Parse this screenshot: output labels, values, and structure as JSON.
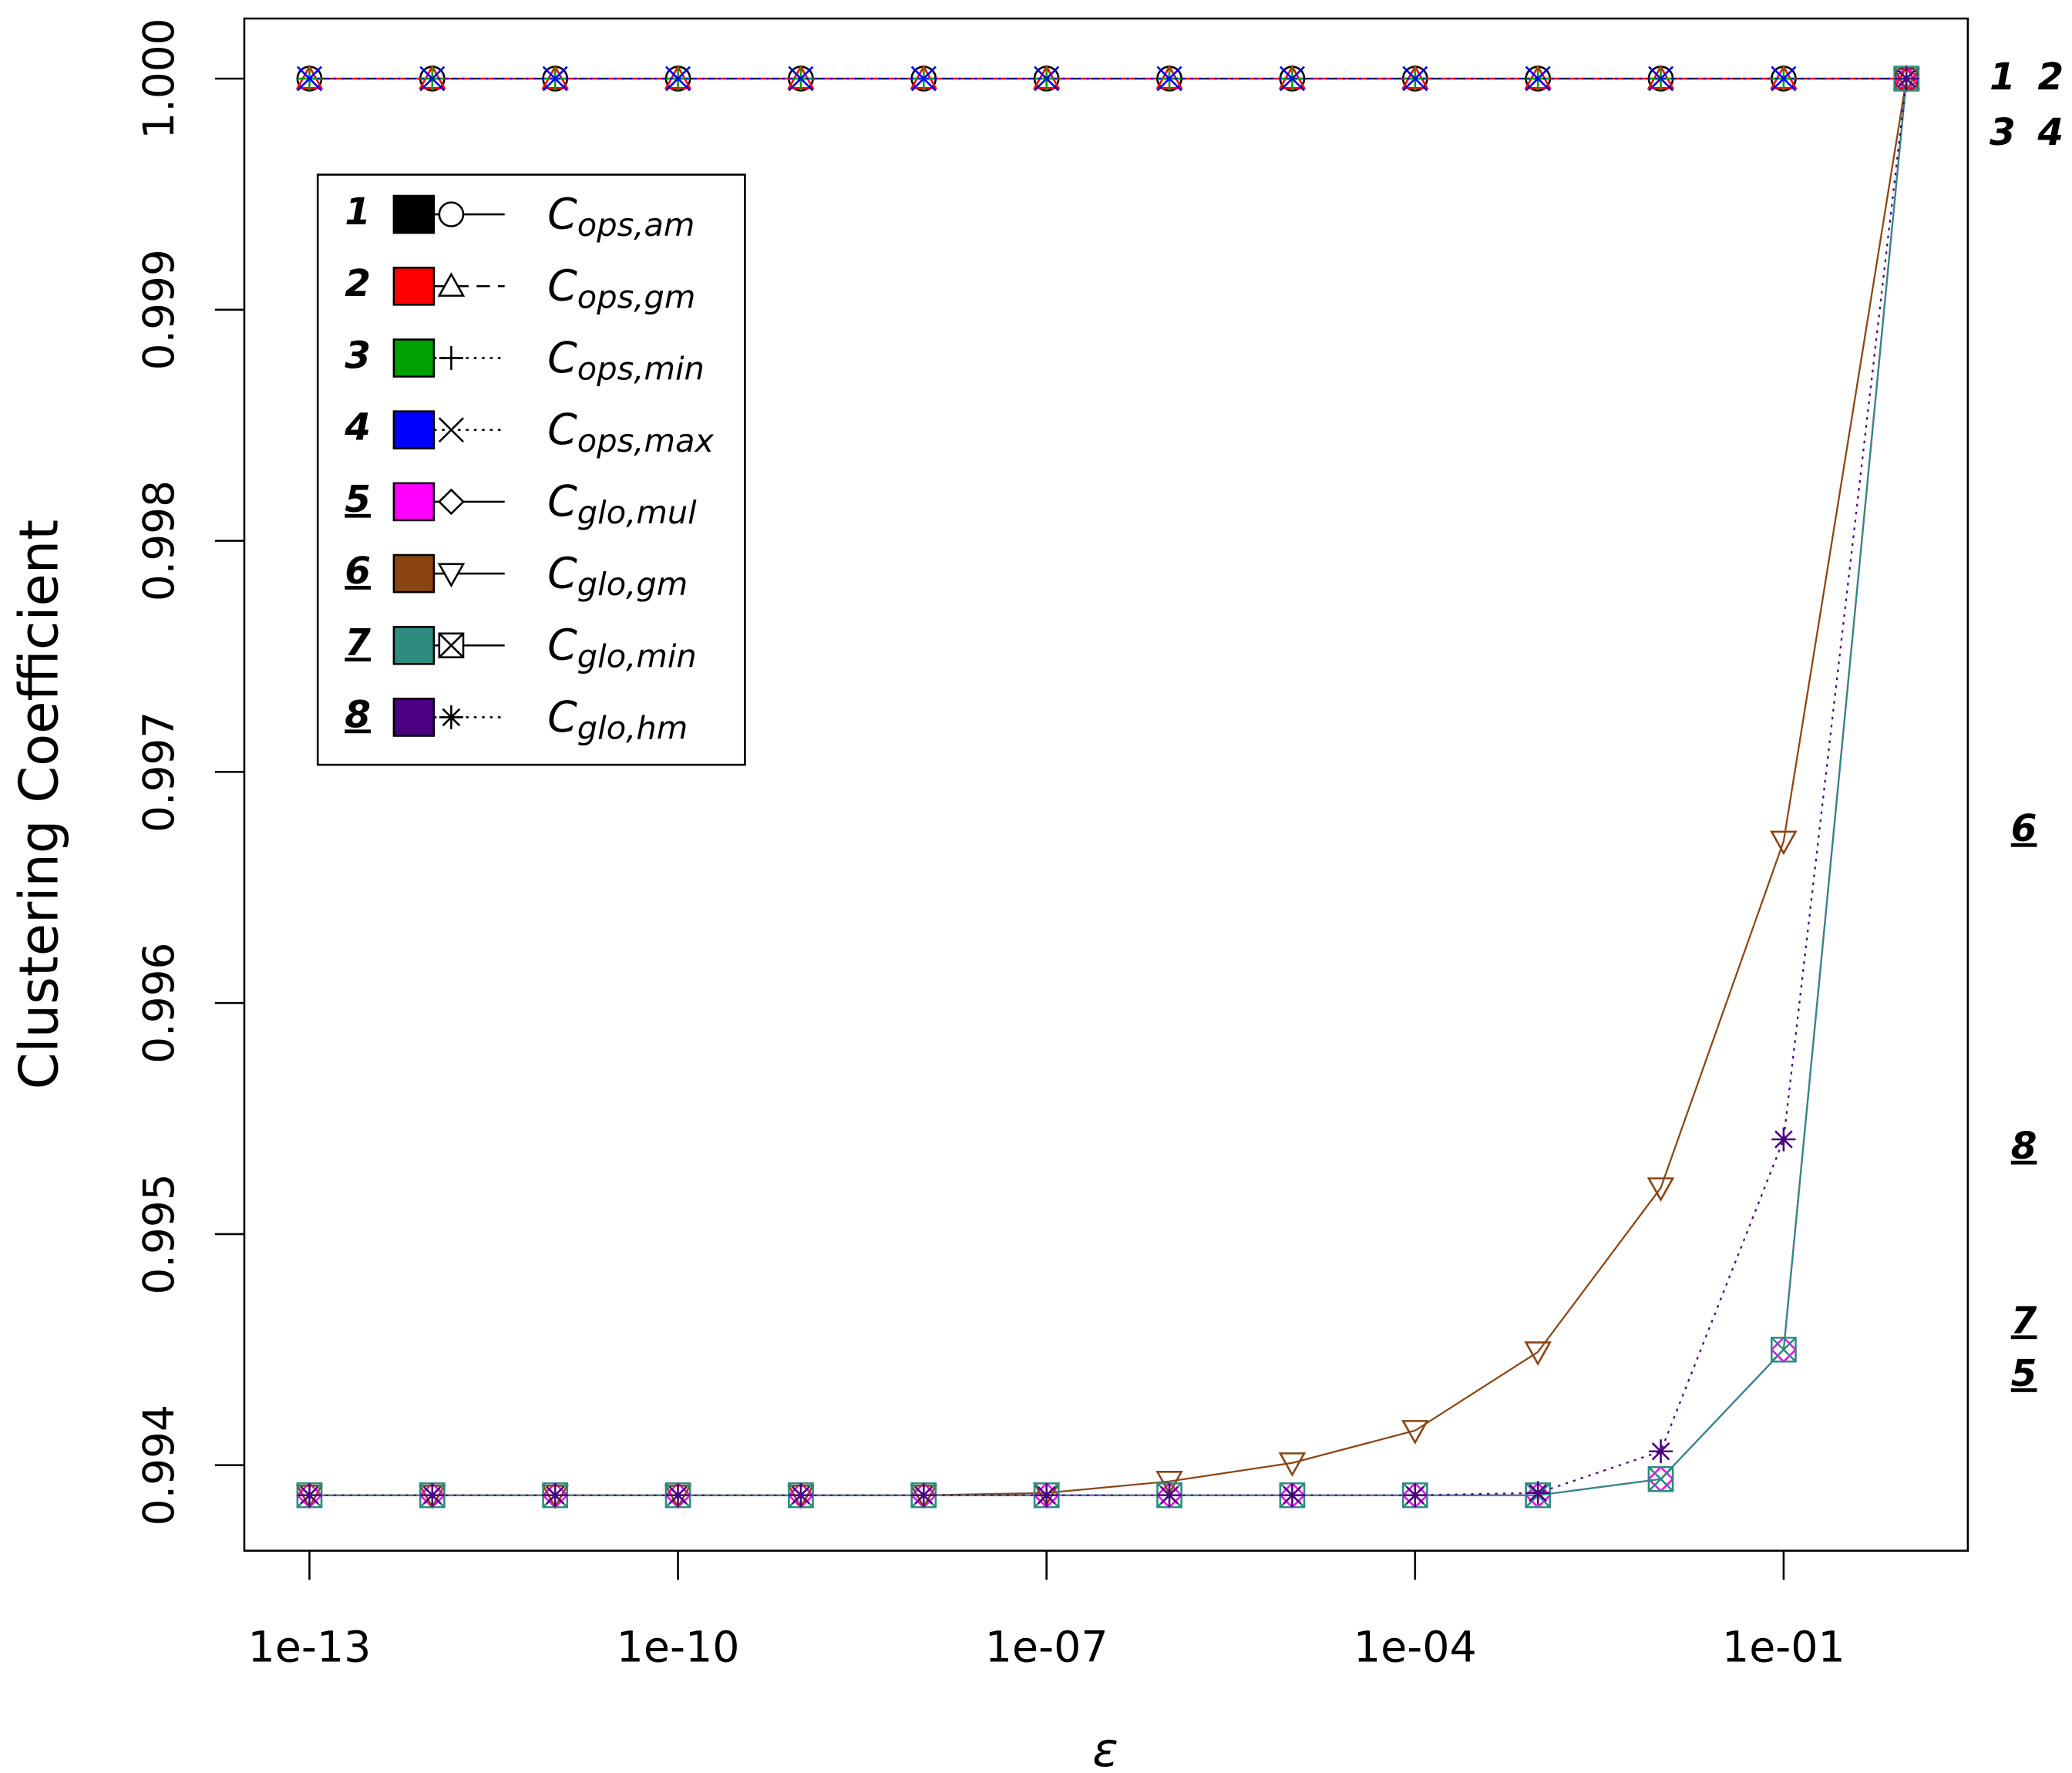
{
  "chart_data": {
    "type": "line",
    "xlabel": "ε",
    "ylabel": "Clustering Coefficient",
    "x": [
      1e-13,
      1e-12,
      1e-11,
      1e-10,
      1e-09,
      1e-08,
      1e-07,
      1e-06,
      1e-05,
      0.0001,
      0.001,
      0.01,
      0.1,
      1
    ],
    "xscale": "log",
    "xlim": [
      2.95e-14,
      3.16
    ],
    "xticks": [
      {
        "value": 1e-13,
        "label": "1e-13"
      },
      {
        "value": 1e-10,
        "label": "1e-10"
      },
      {
        "value": 1e-07,
        "label": "1e-07"
      },
      {
        "value": 0.0001,
        "label": "1e-04"
      },
      {
        "value": 0.1,
        "label": "1e-01"
      }
    ],
    "ylim": [
      0.99363,
      1.00026
    ],
    "yticks": [
      0.994,
      0.995,
      0.996,
      0.997,
      0.998,
      0.999,
      {
        "value": 1,
        "label": "1.000"
      }
    ],
    "grid": false,
    "legend": "upper left",
    "series": [
      {
        "id": "1",
        "name": "C",
        "subscript": "ops,am",
        "color": "#000000",
        "marker": "circle",
        "dash": "solid",
        "values": [
          1,
          1,
          1,
          1,
          1,
          1,
          1,
          1,
          1,
          1,
          1,
          1,
          1,
          1
        ]
      },
      {
        "id": "2",
        "name": "C",
        "subscript": "ops,gm",
        "color": "#ff0000",
        "marker": "triangle",
        "dash": "dashed",
        "values": [
          1,
          1,
          1,
          1,
          1,
          1,
          1,
          1,
          1,
          1,
          1,
          1,
          1,
          1
        ]
      },
      {
        "id": "3",
        "name": "C",
        "subscript": "ops,min",
        "color": "#00a000",
        "marker": "plus",
        "dash": "dotted",
        "values": [
          1,
          1,
          1,
          1,
          1,
          1,
          1,
          1,
          1,
          1,
          1,
          1,
          1,
          1
        ]
      },
      {
        "id": "4",
        "name": "C",
        "subscript": "ops,max",
        "color": "#0000ff",
        "marker": "cross",
        "dash": "dotted",
        "values": [
          1,
          1,
          1,
          1,
          1,
          1,
          1,
          1,
          1,
          1,
          1,
          1,
          1,
          1
        ]
      },
      {
        "id": "5",
        "name": "C",
        "subscript": "glo,mul",
        "color": "#ff00ff",
        "marker": "diamond",
        "dash": "solid",
        "values": [
          0.99387,
          0.99387,
          0.99387,
          0.99387,
          0.99387,
          0.99387,
          0.99387,
          0.99387,
          0.99387,
          0.99387,
          0.99387,
          0.99394,
          0.9945,
          1
        ]
      },
      {
        "id": "6",
        "name": "C",
        "subscript": "glo,gm",
        "color": "#8b4513",
        "marker": "down-triangle",
        "dash": "solid",
        "values": [
          0.99387,
          0.99387,
          0.99387,
          0.99387,
          0.99387,
          0.99387,
          0.99388,
          0.99393,
          0.99401,
          0.99415,
          0.99449,
          0.9952,
          0.9967,
          1
        ]
      },
      {
        "id": "7",
        "name": "C",
        "subscript": "glo,min",
        "color": "#2e8b80",
        "marker": "boxed-x",
        "dash": "solid",
        "values": [
          0.99387,
          0.99387,
          0.99387,
          0.99387,
          0.99387,
          0.99387,
          0.99387,
          0.99387,
          0.99387,
          0.99387,
          0.99387,
          0.99394,
          0.9945,
          1
        ]
      },
      {
        "id": "8",
        "name": "C",
        "subscript": "glo,hm",
        "color": "#4b0082",
        "marker": "asterisk",
        "dash": "dotted",
        "values": [
          0.99387,
          0.99387,
          0.99387,
          0.99387,
          0.99387,
          0.99387,
          0.99387,
          0.99387,
          0.99387,
          0.99387,
          0.99388,
          0.99406,
          0.99541,
          1
        ]
      }
    ]
  }
}
